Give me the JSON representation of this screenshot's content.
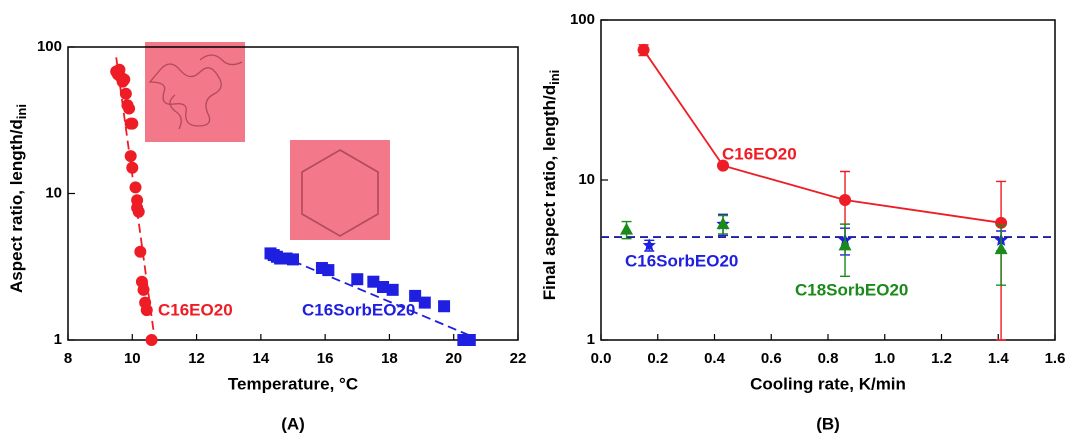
{
  "chart_data": [
    {
      "type": "scatter",
      "caption": "(A)",
      "xlabel": "Temperature, °C",
      "ylabel": "Aspect ratio, length/d",
      "ylabel_sub": "ini",
      "xlim": [
        8,
        22
      ],
      "xticks": [
        8,
        10,
        12,
        14,
        16,
        18,
        20,
        22
      ],
      "ylim": [
        1,
        100
      ],
      "yticks": [
        1,
        10,
        100
      ],
      "ylog": true,
      "series": [
        {
          "name": "C16EO20",
          "color": "#ee1c25",
          "marker": "circle",
          "x": [
            9.5,
            9.55,
            9.6,
            9.65,
            9.7,
            9.75,
            9.8,
            9.85,
            9.9,
            9.95,
            10.0,
            9.95,
            10.0,
            10.1,
            10.15,
            10.15,
            10.2,
            10.25,
            10.3,
            10.35,
            10.4,
            10.45,
            10.6
          ],
          "values": [
            68,
            65,
            70,
            62,
            58,
            60,
            48,
            40,
            38,
            30,
            30,
            18,
            15,
            11,
            9,
            8,
            7.5,
            4,
            2.5,
            2.2,
            1.8,
            1.6,
            1.0
          ],
          "fit": {
            "x": [
              9.5,
              10.7
            ],
            "values": [
              85,
              1.0
            ]
          }
        },
        {
          "name": "C16SorbEO20",
          "color": "#1f1fe0",
          "marker": "square",
          "x": [
            14.3,
            14.4,
            14.5,
            14.6,
            14.8,
            15.0,
            15.9,
            16.1,
            17.0,
            17.5,
            17.8,
            18.1,
            18.8,
            19.1,
            19.7,
            20.3,
            20.5
          ],
          "values": [
            3.9,
            3.8,
            3.7,
            3.6,
            3.6,
            3.55,
            3.1,
            3.0,
            2.6,
            2.5,
            2.3,
            2.2,
            2.0,
            1.8,
            1.7,
            1.0,
            1.0
          ],
          "fit": {
            "x": [
              14.2,
              20.6
            ],
            "values": [
              4.1,
              1.05
            ]
          }
        }
      ]
    },
    {
      "type": "scatter",
      "caption": "(B)",
      "xlabel": "Cooling rate, K/min",
      "ylabel": "Final aspect ratio, length/d",
      "ylabel_sub": "ini",
      "xlim": [
        0,
        1.6
      ],
      "xticks": [
        {
          "value": 0,
          "label": "0.0"
        },
        0.2,
        0.4,
        0.6,
        0.8,
        {
          "value": 1,
          "label": "1.0"
        },
        1.2,
        1.4,
        1.6
      ],
      "ylim": [
        1,
        100
      ],
      "yticks": [
        1,
        10,
        100
      ],
      "ylog": true,
      "reference_line": 4.4,
      "reference_color": "#1f1fa0",
      "series": [
        {
          "name": "C16EO20",
          "color": "#ee1c25",
          "marker": "circle",
          "line": true,
          "x": [
            0.15,
            0.43,
            0.86,
            1.41
          ],
          "values": [
            65,
            12.3,
            7.5,
            5.4
          ],
          "errors": [
            5,
            0.5,
            3.8,
            4.4
          ]
        },
        {
          "name": "C16SorbEO20",
          "color": "#1f1fe0",
          "marker": "star",
          "x": [
            0.17,
            0.43,
            0.86,
            1.41
          ],
          "values": [
            3.9,
            5.3,
            4.2,
            4.2
          ],
          "errors": [
            0.3,
            0.8,
            0.8,
            0.6
          ]
        },
        {
          "name": "C18SorbEO20",
          "color": "#1a8a1a",
          "marker": "triangle",
          "x": [
            0.09,
            0.43,
            0.86,
            1.41
          ],
          "values": [
            4.9,
            5.3,
            3.9,
            3.7
          ],
          "errors": [
            0.6,
            0.7,
            1.4,
            1.5
          ]
        }
      ]
    }
  ]
}
